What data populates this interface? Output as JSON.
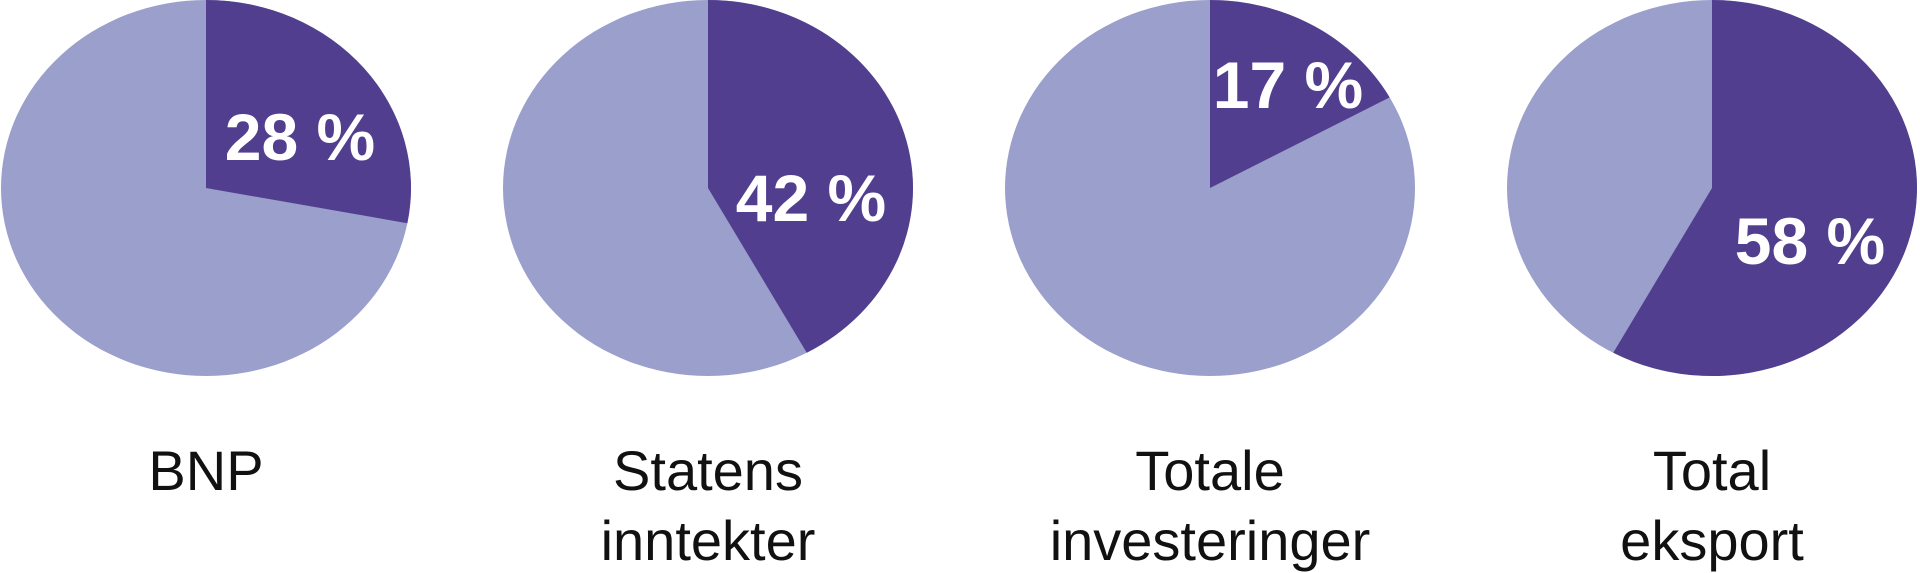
{
  "chart_data": {
    "type": "pie",
    "colors": {
      "highlight": "#523e8e",
      "remainder": "#9a9fcc"
    },
    "charts": [
      {
        "label_lines": [
          "BNP"
        ],
        "value": 28,
        "value_label": "28 %"
      },
      {
        "label_lines": [
          "Statens",
          "inntekter"
        ],
        "value": 42,
        "value_label": "42 %"
      },
      {
        "label_lines": [
          "Totale",
          "investeringer"
        ],
        "value": 17,
        "value_label": "17 %"
      },
      {
        "label_lines": [
          "Total",
          "eksport"
        ],
        "value": 58,
        "value_label": "58 %"
      }
    ]
  }
}
